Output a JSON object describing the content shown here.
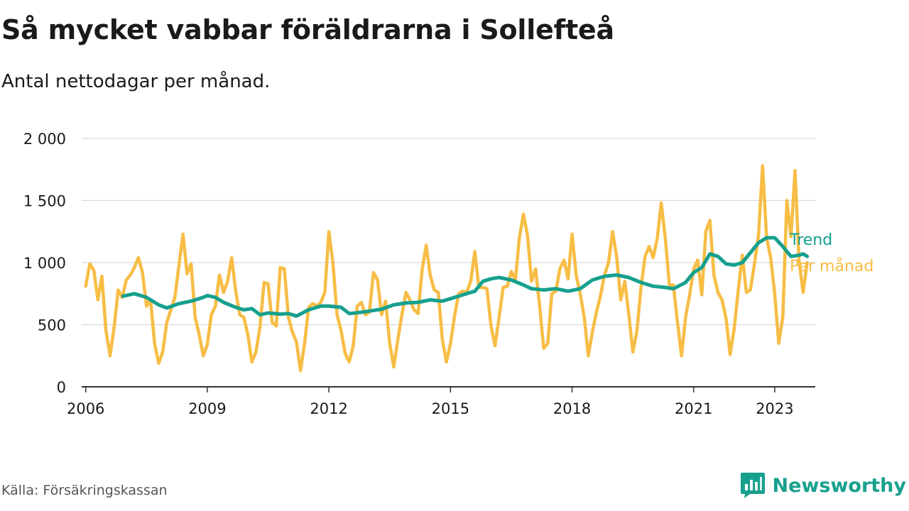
{
  "title": "Så mycket vabbar föräldrarna i Sollefteå",
  "subtitle": "Antal nettodagar per månad.",
  "source": "Källa: Försäkringskassan",
  "brand": {
    "name": "Newsworthy",
    "icon": "newsworthy-logo-icon"
  },
  "colors": {
    "trend": "#16a08e",
    "monthly": "#f7bd45",
    "grid": "#d9d9d9",
    "axis": "#333333",
    "text": "#1a1a1a"
  },
  "chart_data": {
    "type": "line",
    "x_unit": "year",
    "xticks": [
      2006,
      2009,
      2012,
      2015,
      2018,
      2021,
      2023
    ],
    "xlim": [
      2005.9,
      2024.0
    ],
    "ylim": [
      0,
      2000
    ],
    "yticks": [
      0,
      500,
      1000,
      1500,
      2000
    ],
    "ytick_labels": [
      "0",
      "500",
      "1 000",
      "1 500",
      "2 000"
    ],
    "grid": "horizontal",
    "legend": "direct labels at line ends",
    "series": [
      {
        "name": "Trend",
        "color": "#16a08e",
        "points": [
          [
            2006.92,
            730
          ],
          [
            2007.2,
            750
          ],
          [
            2007.5,
            720
          ],
          [
            2007.8,
            660
          ],
          [
            2008.0,
            635
          ],
          [
            2008.3,
            670
          ],
          [
            2008.6,
            690
          ],
          [
            2008.9,
            720
          ],
          [
            2009.0,
            735
          ],
          [
            2009.2,
            720
          ],
          [
            2009.4,
            680
          ],
          [
            2009.7,
            640
          ],
          [
            2009.9,
            620
          ],
          [
            2010.1,
            630
          ],
          [
            2010.3,
            580
          ],
          [
            2010.5,
            595
          ],
          [
            2010.8,
            585
          ],
          [
            2011.0,
            590
          ],
          [
            2011.2,
            570
          ],
          [
            2011.5,
            620
          ],
          [
            2011.8,
            650
          ],
          [
            2012.0,
            650
          ],
          [
            2012.3,
            640
          ],
          [
            2012.5,
            590
          ],
          [
            2012.8,
            600
          ],
          [
            2013.0,
            610
          ],
          [
            2013.3,
            625
          ],
          [
            2013.6,
            660
          ],
          [
            2013.9,
            675
          ],
          [
            2014.2,
            680
          ],
          [
            2014.5,
            700
          ],
          [
            2014.8,
            690
          ],
          [
            2015.0,
            710
          ],
          [
            2015.3,
            740
          ],
          [
            2015.6,
            770
          ],
          [
            2015.8,
            850
          ],
          [
            2016.0,
            870
          ],
          [
            2016.2,
            880
          ],
          [
            2016.5,
            860
          ],
          [
            2016.8,
            820
          ],
          [
            2017.0,
            790
          ],
          [
            2017.3,
            780
          ],
          [
            2017.6,
            790
          ],
          [
            2017.9,
            770
          ],
          [
            2018.2,
            790
          ],
          [
            2018.5,
            860
          ],
          [
            2018.8,
            890
          ],
          [
            2019.1,
            900
          ],
          [
            2019.4,
            880
          ],
          [
            2019.7,
            840
          ],
          [
            2020.0,
            810
          ],
          [
            2020.3,
            800
          ],
          [
            2020.5,
            790
          ],
          [
            2020.8,
            840
          ],
          [
            2021.0,
            920
          ],
          [
            2021.2,
            960
          ],
          [
            2021.4,
            1070
          ],
          [
            2021.6,
            1050
          ],
          [
            2021.8,
            990
          ],
          [
            2022.0,
            980
          ],
          [
            2022.2,
            1000
          ],
          [
            2022.4,
            1080
          ],
          [
            2022.6,
            1160
          ],
          [
            2022.8,
            1200
          ],
          [
            2023.0,
            1200
          ],
          [
            2023.2,
            1130
          ],
          [
            2023.4,
            1050
          ],
          [
            2023.6,
            1060
          ],
          [
            2023.7,
            1070
          ],
          [
            2023.8,
            1050
          ]
        ]
      },
      {
        "name": "Per månad",
        "color": "#f7bd45",
        "points": [
          [
            2006.0,
            810
          ],
          [
            2006.1,
            990
          ],
          [
            2006.2,
            940
          ],
          [
            2006.3,
            700
          ],
          [
            2006.4,
            890
          ],
          [
            2006.5,
            450
          ],
          [
            2006.6,
            250
          ],
          [
            2006.7,
            480
          ],
          [
            2006.8,
            780
          ],
          [
            2006.9,
            720
          ],
          [
            2007.0,
            860
          ],
          [
            2007.1,
            900
          ],
          [
            2007.2,
            960
          ],
          [
            2007.3,
            1040
          ],
          [
            2007.4,
            920
          ],
          [
            2007.5,
            650
          ],
          [
            2007.6,
            700
          ],
          [
            2007.7,
            350
          ],
          [
            2007.8,
            190
          ],
          [
            2007.9,
            280
          ],
          [
            2008.0,
            520
          ],
          [
            2008.1,
            620
          ],
          [
            2008.2,
            720
          ],
          [
            2008.3,
            980
          ],
          [
            2008.4,
            1230
          ],
          [
            2008.5,
            910
          ],
          [
            2008.6,
            990
          ],
          [
            2008.7,
            560
          ],
          [
            2008.8,
            420
          ],
          [
            2008.9,
            250
          ],
          [
            2009.0,
            340
          ],
          [
            2009.1,
            580
          ],
          [
            2009.2,
            650
          ],
          [
            2009.3,
            900
          ],
          [
            2009.4,
            760
          ],
          [
            2009.5,
            850
          ],
          [
            2009.6,
            1040
          ],
          [
            2009.7,
            770
          ],
          [
            2009.8,
            580
          ],
          [
            2009.9,
            560
          ],
          [
            2010.0,
            420
          ],
          [
            2010.1,
            200
          ],
          [
            2010.2,
            280
          ],
          [
            2010.3,
            480
          ],
          [
            2010.4,
            840
          ],
          [
            2010.5,
            830
          ],
          [
            2010.6,
            520
          ],
          [
            2010.7,
            490
          ],
          [
            2010.8,
            960
          ],
          [
            2010.9,
            950
          ],
          [
            2011.0,
            560
          ],
          [
            2011.1,
            440
          ],
          [
            2011.2,
            360
          ],
          [
            2011.3,
            130
          ],
          [
            2011.4,
            350
          ],
          [
            2011.5,
            640
          ],
          [
            2011.6,
            670
          ],
          [
            2011.7,
            650
          ],
          [
            2011.8,
            680
          ],
          [
            2011.9,
            760
          ],
          [
            2012.0,
            1250
          ],
          [
            2012.1,
            1000
          ],
          [
            2012.2,
            580
          ],
          [
            2012.3,
            450
          ],
          [
            2012.4,
            270
          ],
          [
            2012.5,
            200
          ],
          [
            2012.6,
            330
          ],
          [
            2012.7,
            650
          ],
          [
            2012.8,
            680
          ],
          [
            2012.9,
            580
          ],
          [
            2013.0,
            600
          ],
          [
            2013.1,
            920
          ],
          [
            2013.2,
            860
          ],
          [
            2013.3,
            580
          ],
          [
            2013.4,
            690
          ],
          [
            2013.5,
            350
          ],
          [
            2013.6,
            160
          ],
          [
            2013.7,
            380
          ],
          [
            2013.8,
            580
          ],
          [
            2013.9,
            760
          ],
          [
            2014.0,
            700
          ],
          [
            2014.1,
            620
          ],
          [
            2014.2,
            590
          ],
          [
            2014.3,
            940
          ],
          [
            2014.4,
            1140
          ],
          [
            2014.5,
            900
          ],
          [
            2014.6,
            780
          ],
          [
            2014.7,
            760
          ],
          [
            2014.8,
            380
          ],
          [
            2014.9,
            200
          ],
          [
            2015.0,
            350
          ],
          [
            2015.1,
            570
          ],
          [
            2015.2,
            750
          ],
          [
            2015.3,
            770
          ],
          [
            2015.4,
            760
          ],
          [
            2015.5,
            850
          ],
          [
            2015.6,
            1090
          ],
          [
            2015.7,
            800
          ],
          [
            2015.8,
            800
          ],
          [
            2015.9,
            790
          ],
          [
            2016.0,
            490
          ],
          [
            2016.1,
            330
          ],
          [
            2016.2,
            560
          ],
          [
            2016.3,
            800
          ],
          [
            2016.4,
            810
          ],
          [
            2016.5,
            930
          ],
          [
            2016.6,
            860
          ],
          [
            2016.7,
            1200
          ],
          [
            2016.8,
            1390
          ],
          [
            2016.9,
            1220
          ],
          [
            2017.0,
            850
          ],
          [
            2017.1,
            950
          ],
          [
            2017.2,
            650
          ],
          [
            2017.3,
            310
          ],
          [
            2017.4,
            350
          ],
          [
            2017.5,
            750
          ],
          [
            2017.6,
            770
          ],
          [
            2017.7,
            950
          ],
          [
            2017.8,
            1020
          ],
          [
            2017.9,
            870
          ],
          [
            2018.0,
            1230
          ],
          [
            2018.1,
            900
          ],
          [
            2018.2,
            750
          ],
          [
            2018.3,
            560
          ],
          [
            2018.4,
            250
          ],
          [
            2018.5,
            440
          ],
          [
            2018.6,
            600
          ],
          [
            2018.7,
            730
          ],
          [
            2018.8,
            900
          ],
          [
            2018.9,
            1000
          ],
          [
            2019.0,
            1250
          ],
          [
            2019.1,
            1050
          ],
          [
            2019.2,
            700
          ],
          [
            2019.3,
            850
          ],
          [
            2019.4,
            580
          ],
          [
            2019.5,
            280
          ],
          [
            2019.6,
            450
          ],
          [
            2019.7,
            800
          ],
          [
            2019.8,
            1050
          ],
          [
            2019.9,
            1130
          ],
          [
            2020.0,
            1040
          ],
          [
            2020.1,
            1190
          ],
          [
            2020.2,
            1480
          ],
          [
            2020.3,
            1200
          ],
          [
            2020.4,
            820
          ],
          [
            2020.5,
            820
          ],
          [
            2020.6,
            520
          ],
          [
            2020.7,
            250
          ],
          [
            2020.8,
            560
          ],
          [
            2020.9,
            740
          ],
          [
            2021.0,
            950
          ],
          [
            2021.1,
            1020
          ],
          [
            2021.2,
            740
          ],
          [
            2021.3,
            1250
          ],
          [
            2021.4,
            1340
          ],
          [
            2021.5,
            900
          ],
          [
            2021.6,
            760
          ],
          [
            2021.7,
            700
          ],
          [
            2021.8,
            550
          ],
          [
            2021.9,
            260
          ],
          [
            2022.0,
            470
          ],
          [
            2022.1,
            780
          ],
          [
            2022.2,
            1060
          ],
          [
            2022.3,
            760
          ],
          [
            2022.4,
            780
          ],
          [
            2022.5,
            990
          ],
          [
            2022.6,
            1220
          ],
          [
            2022.7,
            1780
          ],
          [
            2022.8,
            1200
          ],
          [
            2022.9,
            1040
          ],
          [
            2023.0,
            750
          ],
          [
            2023.1,
            350
          ],
          [
            2023.2,
            560
          ],
          [
            2023.3,
            1500
          ],
          [
            2023.4,
            1210
          ],
          [
            2023.5,
            1740
          ],
          [
            2023.6,
            1010
          ],
          [
            2023.7,
            760
          ],
          [
            2023.8,
            1000
          ]
        ]
      }
    ]
  }
}
